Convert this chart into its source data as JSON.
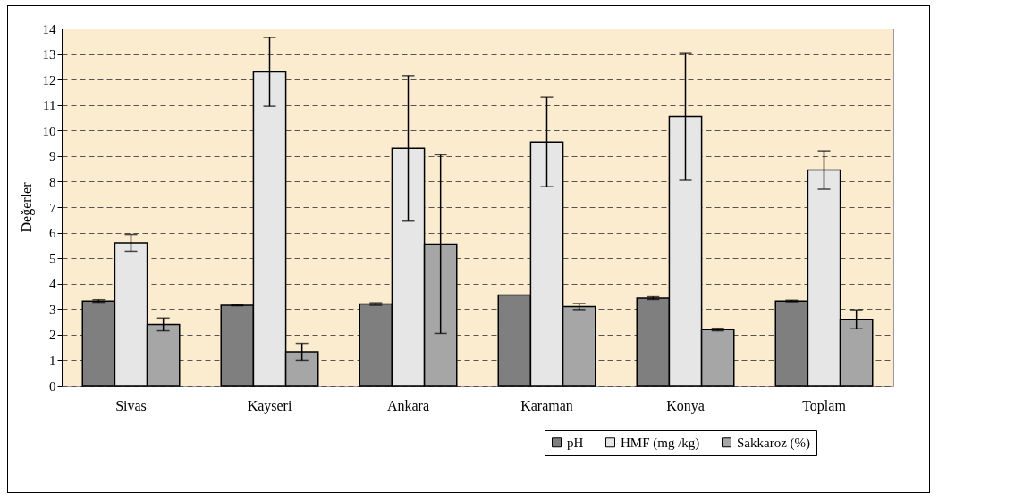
{
  "chart_data": {
    "type": "bar",
    "ylabel": "Değerler",
    "categories": [
      "Sivas",
      "Kayseri",
      "Ankara",
      "Karaman",
      "Konya",
      "Toplam"
    ],
    "series": [
      {
        "name": "pH",
        "color": "#7f7f7f",
        "values": [
          3.32,
          3.15,
          3.2,
          3.55,
          3.43,
          3.32
        ],
        "errors": [
          0.05,
          0.02,
          0.05,
          null,
          0.05,
          0.03
        ]
      },
      {
        "name": "HMF (mg /kg)",
        "color": "#e6e6e6",
        "values": [
          5.6,
          12.3,
          9.3,
          9.55,
          10.55,
          8.45
        ],
        "errors": [
          0.33,
          1.35,
          2.85,
          1.75,
          2.5,
          0.75
        ]
      },
      {
        "name": "Sakkaroz (%)",
        "color": "#a6a6a6",
        "values": [
          2.4,
          1.33,
          5.55,
          3.1,
          2.2,
          2.6
        ],
        "errors": [
          0.25,
          0.33,
          3.5,
          0.12,
          0.05,
          0.37
        ]
      }
    ],
    "ylim": [
      0,
      14
    ],
    "yticks": [
      0,
      1,
      2,
      3,
      4,
      5,
      6,
      7,
      8,
      9,
      10,
      11,
      12,
      13,
      14
    ],
    "grid": "y",
    "legend": "bottom right"
  }
}
